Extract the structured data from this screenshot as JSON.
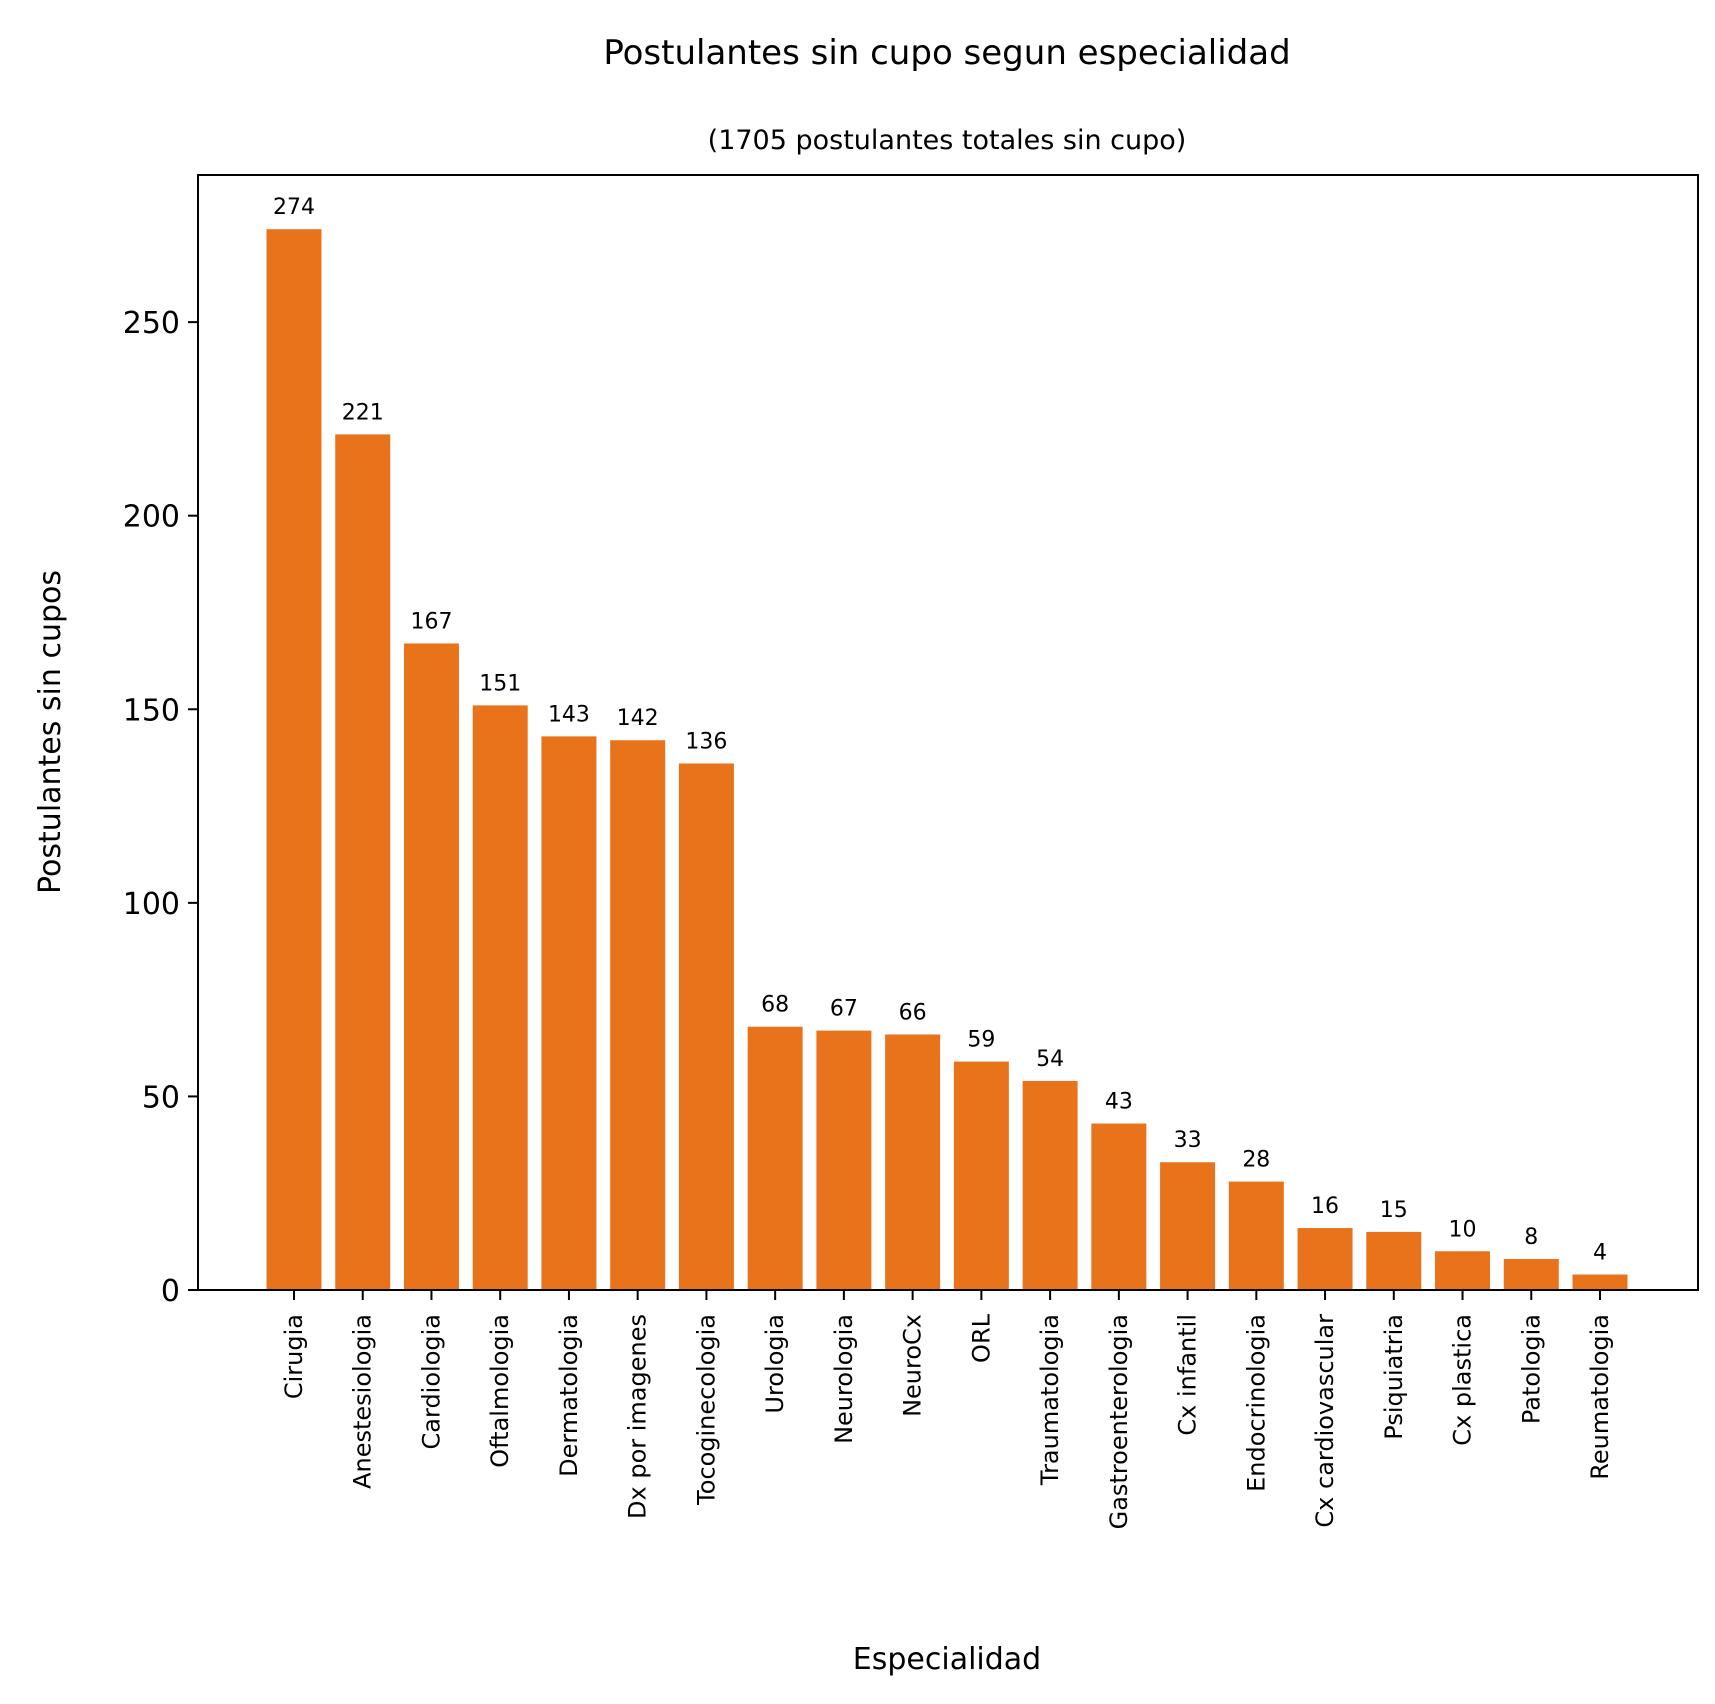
{
  "chart_data": {
    "type": "bar",
    "title": "Postulantes sin cupo segun especialidad",
    "subtitle": "(1705 postulantes totales sin cupo)",
    "xlabel": "Especialidad",
    "ylabel": "Postulantes sin cupos",
    "categories": [
      "Cirugia",
      "Anestesiologia",
      "Cardiologia",
      "Oftalmologia",
      "Dermatologia",
      "Dx por imagenes",
      "Tocoginecologia",
      "Urologia",
      "Neurologia",
      "NeuroCx",
      "ORL",
      "Traumatologia",
      "Gastroenterologia",
      "Cx infantil",
      "Endocrinologia",
      "Cx cardiovascular",
      "Psiquiatria",
      "Cx plastica",
      "Patologia",
      "Reumatologia"
    ],
    "values": [
      274,
      221,
      167,
      151,
      143,
      142,
      136,
      68,
      67,
      66,
      59,
      54,
      43,
      33,
      28,
      16,
      15,
      10,
      8,
      4
    ],
    "yticks": [
      0,
      50,
      100,
      150,
      200,
      250
    ],
    "ylim": [
      0,
      288
    ],
    "bar_color": "#e8731a",
    "grid": false,
    "legend": "none"
  }
}
